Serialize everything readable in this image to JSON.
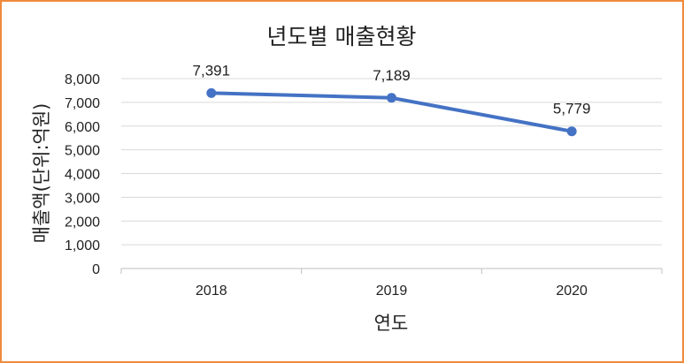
{
  "chart_data": {
    "type": "line",
    "title": "년도별 매출현황",
    "xlabel": "연도",
    "ylabel": "매출액(단위:억원)",
    "categories": [
      "2018",
      "2019",
      "2020"
    ],
    "series": [
      {
        "name": "매출액",
        "values": [
          7391,
          7189,
          5779
        ]
      }
    ],
    "data_labels": [
      "7,391",
      "7,189",
      "5,779"
    ],
    "ylim": [
      0,
      8000
    ],
    "yticks": [
      0,
      1000,
      2000,
      3000,
      4000,
      5000,
      6000,
      7000,
      8000
    ],
    "ytick_labels": [
      "0",
      "1,000",
      "2,000",
      "3,000",
      "4,000",
      "5,000",
      "6,000",
      "7,000",
      "8,000"
    ],
    "grid": true,
    "colors": {
      "line": "#4472c4",
      "grid": "#d9d9d9",
      "frame": "#f08a3c"
    }
  }
}
